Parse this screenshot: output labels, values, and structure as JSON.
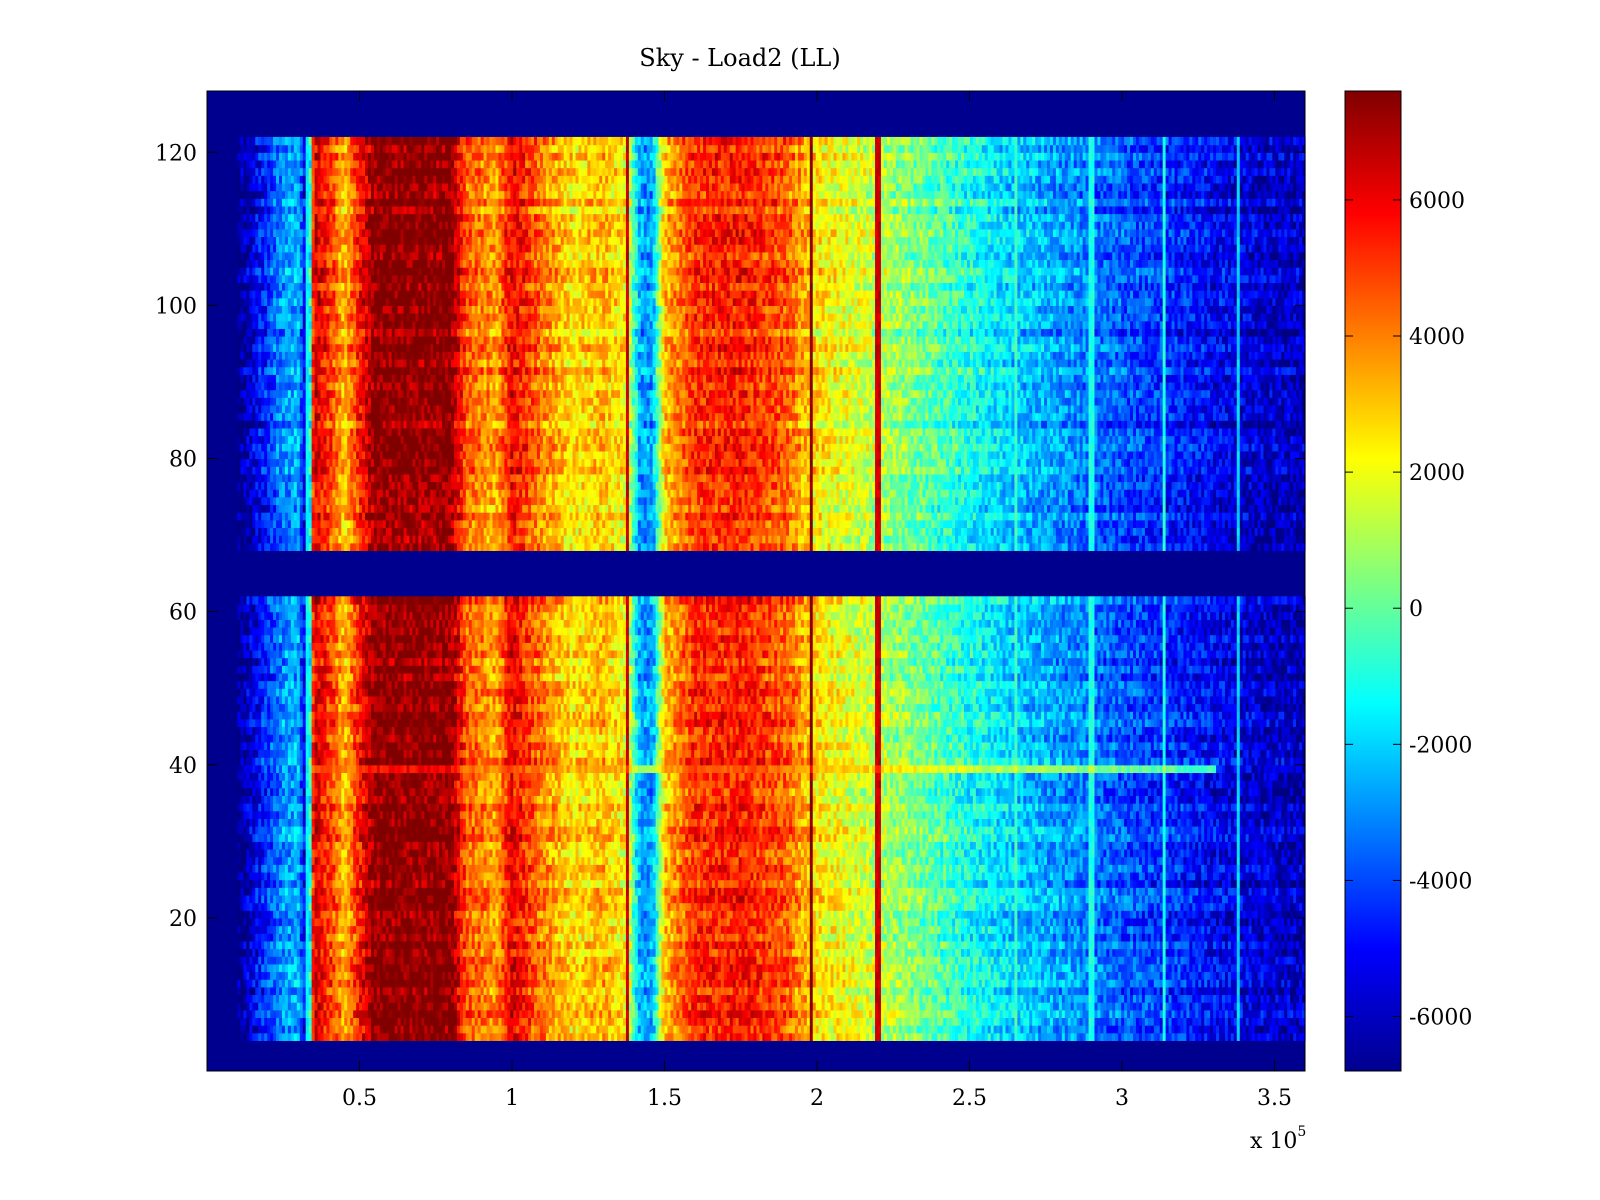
{
  "chart_data": {
    "type": "heatmap",
    "title": "Sky - Load2 (LL)",
    "xlabel": "",
    "ylabel": "",
    "x_multiplier_label": "x 10",
    "x_multiplier_exponent": "5",
    "xlim": [
      0,
      3.6
    ],
    "ylim": [
      0,
      128
    ],
    "x_ticks": [
      0.5,
      1,
      1.5,
      2,
      2.5,
      3,
      3.5
    ],
    "x_tick_labels": [
      "0.5",
      "1",
      "1.5",
      "2",
      "2.5",
      "3",
      "3.5"
    ],
    "y_ticks": [
      20,
      40,
      60,
      80,
      100,
      120
    ],
    "y_tick_labels": [
      "20",
      "40",
      "60",
      "80",
      "100",
      "120"
    ],
    "colorbar": {
      "colormap": "jet",
      "range": [
        -6800,
        7600
      ],
      "ticks": [
        -6000,
        -4000,
        -2000,
        0,
        2000,
        4000,
        6000
      ],
      "tick_labels": [
        "-6000",
        "-4000",
        "-2000",
        "0",
        "2000",
        "4000",
        "6000"
      ]
    },
    "empty_value": -6800,
    "data_row_ranges": [
      [
        4,
        61
      ],
      [
        68,
        121
      ]
    ],
    "x_columns_extent": [
      0.1,
      3.6
    ],
    "column_profile": [
      {
        "x": 0.1,
        "v": -6800
      },
      {
        "x": 0.13,
        "v": -6000
      },
      {
        "x": 0.25,
        "v": -3000
      },
      {
        "x": 0.3,
        "v": -2500
      },
      {
        "x": 0.33,
        "v": -6500
      },
      {
        "x": 0.35,
        "v": 6500
      },
      {
        "x": 0.42,
        "v": 4500
      },
      {
        "x": 0.45,
        "v": 3000
      },
      {
        "x": 0.5,
        "v": 5500
      },
      {
        "x": 0.55,
        "v": 7500
      },
      {
        "x": 0.8,
        "v": 7500
      },
      {
        "x": 0.85,
        "v": 4500
      },
      {
        "x": 0.95,
        "v": 3500
      },
      {
        "x": 1.0,
        "v": 6000
      },
      {
        "x": 1.1,
        "v": 4000
      },
      {
        "x": 1.2,
        "v": 2500
      },
      {
        "x": 1.3,
        "v": 3200
      },
      {
        "x": 1.38,
        "v": 2000
      },
      {
        "x": 1.42,
        "v": -2800
      },
      {
        "x": 1.46,
        "v": -2800
      },
      {
        "x": 1.5,
        "v": 3000
      },
      {
        "x": 1.6,
        "v": 5200
      },
      {
        "x": 1.75,
        "v": 5500
      },
      {
        "x": 1.9,
        "v": 4500
      },
      {
        "x": 2.0,
        "v": 2500
      },
      {
        "x": 2.2,
        "v": 1200
      },
      {
        "x": 2.4,
        "v": -300
      },
      {
        "x": 2.6,
        "v": -1800
      },
      {
        "x": 2.8,
        "v": -2800
      },
      {
        "x": 3.0,
        "v": -3800
      },
      {
        "x": 3.2,
        "v": -4600
      },
      {
        "x": 3.4,
        "v": -5500
      },
      {
        "x": 3.6,
        "v": -6000
      }
    ],
    "vertical_streaks": [
      {
        "x": 0.33,
        "v": -1500
      },
      {
        "x": 1.38,
        "v": 6500
      },
      {
        "x": 1.98,
        "v": 7500
      },
      {
        "x": 2.2,
        "v": 6500
      },
      {
        "x": 2.65,
        "v": -500
      },
      {
        "x": 2.9,
        "v": -1000
      },
      {
        "x": 3.14,
        "v": -1000
      },
      {
        "x": 3.38,
        "v": -2000
      }
    ],
    "horizontal_streak": {
      "y": 39,
      "v": 4000
    }
  }
}
